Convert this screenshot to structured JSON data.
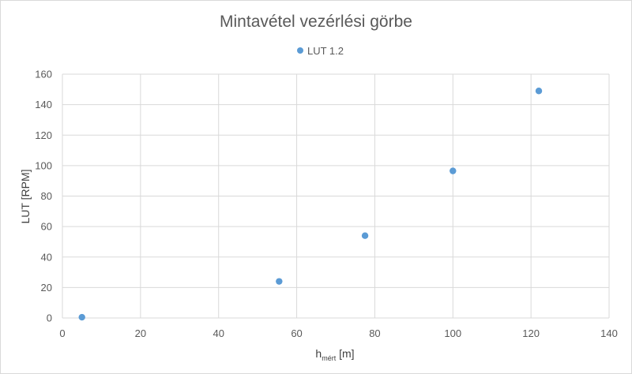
{
  "chart_data": {
    "type": "scatter",
    "title": "Mintavétel vezérlési görbe",
    "xlabel_main": "h",
    "xlabel_sub": "mért",
    "xlabel_unit": " [m]",
    "ylabel": "LUT [RPM]",
    "xlim": [
      0,
      140
    ],
    "ylim": [
      0,
      160
    ],
    "x_ticks": [
      0,
      20,
      40,
      60,
      80,
      100,
      120,
      140
    ],
    "y_ticks": [
      0,
      20,
      40,
      60,
      80,
      100,
      120,
      140,
      160
    ],
    "grid": true,
    "legend_position": "top",
    "series": [
      {
        "name": "LUT 1.2",
        "color": "#5b9bd5",
        "points": [
          {
            "x": 5,
            "y": 0.5
          },
          {
            "x": 55.5,
            "y": 24
          },
          {
            "x": 77.5,
            "y": 54
          },
          {
            "x": 100,
            "y": 96.5
          },
          {
            "x": 122,
            "y": 149
          }
        ]
      }
    ]
  }
}
